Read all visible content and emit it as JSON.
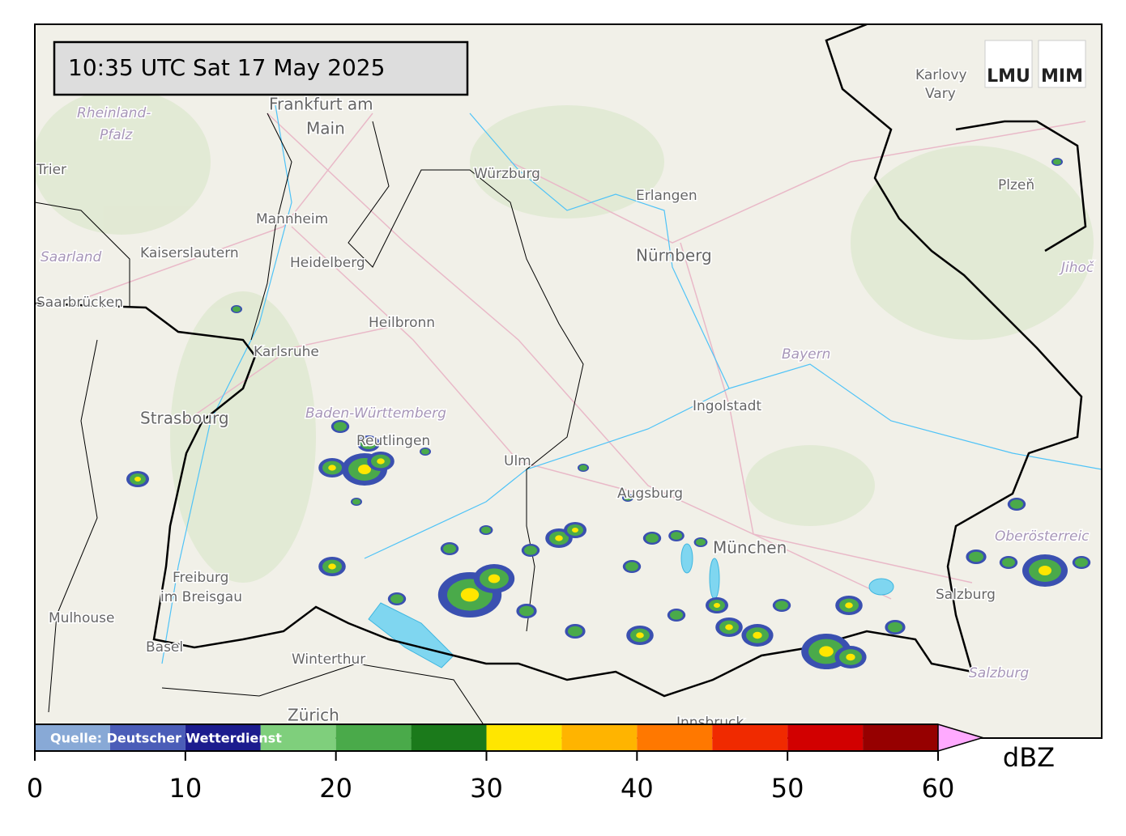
{
  "header": {
    "timestamp": "10:35 UTC  Sat 17 May 2025",
    "logos": [
      "LMU",
      "MIM"
    ]
  },
  "map": {
    "places": [
      "Frankfurt am",
      "Main",
      "Würzburg",
      "Erlangen",
      "Nürnberg",
      "Mannheim",
      "Heidelberg",
      "Kaiserslautern",
      "Saarland",
      "Rheinland-",
      "Pfalz",
      "Trier",
      "Saarbrücken",
      "Heilbronn",
      "Karlsruhe",
      "Strasbourg",
      "Baden-Württemberg",
      "Reutlingen",
      "Ulm",
      "Augsburg",
      "Ingolstadt",
      "Bayern",
      "München",
      "Freiburg",
      "im Breisgau",
      "Mulhouse",
      "Basel",
      "Winterthur",
      "Zürich",
      "Innsbruck",
      "Salzburg",
      "Salzburg",
      "Oberösterreic",
      "Karlovy",
      "Vary",
      "Plzeň",
      "Jihoč"
    ]
  },
  "colorbar": {
    "source": "Quelle: Deutscher Wetterdienst",
    "label": "dBZ",
    "vlim": [
      0,
      60
    ],
    "bounds": [
      0,
      5,
      10,
      15,
      20,
      25,
      30,
      35,
      40,
      45,
      50,
      55,
      60
    ],
    "colors": [
      "#88a9d6",
      "#4b5db8",
      "#1c1c8e",
      "#7fcf7c",
      "#4aaa4a",
      "#1b7a1b",
      "#ffe600",
      "#ffb400",
      "#ff7800",
      "#f02a00",
      "#d20000",
      "#960000"
    ],
    "extend_color": "#ffaaff",
    "ticks": [
      0,
      10,
      20,
      30,
      40,
      50,
      60
    ]
  }
}
